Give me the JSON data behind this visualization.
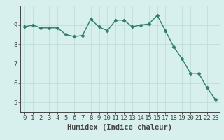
{
  "x": [
    0,
    1,
    2,
    3,
    4,
    5,
    6,
    7,
    8,
    9,
    10,
    11,
    12,
    13,
    14,
    15,
    16,
    17,
    18,
    19,
    20,
    21,
    22,
    23
  ],
  "y": [
    8.9,
    9.0,
    8.85,
    8.85,
    8.85,
    8.5,
    8.4,
    8.45,
    9.3,
    8.9,
    8.7,
    9.25,
    9.25,
    8.9,
    9.0,
    9.05,
    9.5,
    8.7,
    7.85,
    7.25,
    6.5,
    6.5,
    5.75,
    5.15
  ],
  "line_color": "#2e7d6e",
  "marker": "D",
  "markersize": 2.5,
  "linewidth": 1.0,
  "bg_color": "#d7f0ee",
  "grid_color": "#c0dedd",
  "xlabel": "Humidex (Indice chaleur)",
  "ylim": [
    4.5,
    10.0
  ],
  "yticks": [
    5,
    6,
    7,
    8,
    9
  ],
  "xtick_labels": [
    "0",
    "1",
    "2",
    "3",
    "4",
    "5",
    "6",
    "7",
    "8",
    "9",
    "10",
    "11",
    "12",
    "13",
    "14",
    "15",
    "16",
    "17",
    "18",
    "19",
    "20",
    "21",
    "22",
    "23"
  ],
  "axis_color": "#444444",
  "xlabel_fontsize": 7.5,
  "tick_fontsize": 6.5
}
